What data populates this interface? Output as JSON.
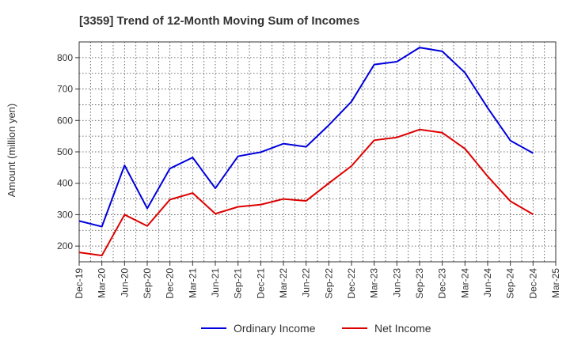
{
  "chart_data": {
    "type": "line",
    "title": "[3359]  Trend of 12-Month Moving Sum of Incomes",
    "xlabel": "",
    "ylabel": "Amount (million yen)",
    "ylim": [
      150,
      850
    ],
    "yticks": [
      200,
      300,
      400,
      500,
      600,
      700,
      800
    ],
    "categories": [
      "Dec-19",
      "Mar-20",
      "Jun-20",
      "Sep-20",
      "Dec-20",
      "Mar-21",
      "Jun-21",
      "Sep-21",
      "Dec-21",
      "Mar-22",
      "Jun-22",
      "Sep-22",
      "Dec-22",
      "Mar-23",
      "Jun-23",
      "Sep-23",
      "Dec-23",
      "Mar-24",
      "Jun-24",
      "Sep-24",
      "Dec-24",
      "Mar-25"
    ],
    "grid": true,
    "legend_position": "bottom",
    "series": [
      {
        "name": "Ordinary Income",
        "color": "#0000dd",
        "values": [
          280,
          262,
          457,
          320,
          447,
          482,
          384,
          486,
          499,
          526,
          516,
          585,
          660,
          778,
          787,
          832,
          820,
          752,
          640,
          536,
          496,
          null
        ]
      },
      {
        "name": "Net Income",
        "color": "#dd0000",
        "values": [
          180,
          170,
          300,
          264,
          348,
          369,
          303,
          325,
          332,
          350,
          344,
          400,
          455,
          537,
          546,
          571,
          561,
          510,
          422,
          343,
          301,
          null
        ]
      }
    ]
  }
}
